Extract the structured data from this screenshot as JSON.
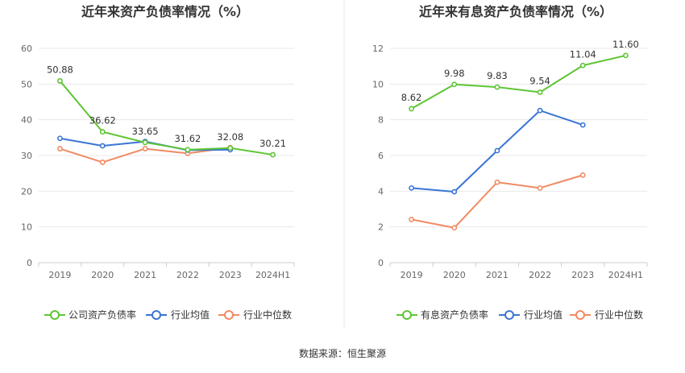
{
  "footer": {
    "source": "数据来源：恒生聚源"
  },
  "chart_data": [
    {
      "type": "line",
      "title": "近年来资产负债率情况（%）",
      "categories": [
        "2019",
        "2020",
        "2021",
        "2022",
        "2023",
        "2024H1"
      ],
      "ylim": [
        0,
        60
      ],
      "yticks": [
        0,
        10,
        20,
        30,
        40,
        50,
        60
      ],
      "grid": true,
      "legend_position": "bottom",
      "series": [
        {
          "name": "公司资产负债率",
          "color": "#5ec534",
          "values": [
            50.88,
            36.62,
            33.65,
            31.62,
            32.08,
            30.21
          ],
          "labels": [
            "50.88",
            "36.62",
            "33.65",
            "31.62",
            "32.08",
            "30.21"
          ]
        },
        {
          "name": "行业均值",
          "color": "#3a75d4",
          "values": [
            34.8,
            32.7,
            33.9,
            31.5,
            31.6,
            null
          ]
        },
        {
          "name": "行业中位数",
          "color": "#f28a63",
          "values": [
            31.9,
            28.1,
            31.9,
            30.6,
            32.2,
            null
          ]
        }
      ]
    },
    {
      "type": "line",
      "title": "近年来有息资产负债率情况（%）",
      "categories": [
        "2019",
        "2020",
        "2021",
        "2022",
        "2023",
        "2024H1"
      ],
      "ylim": [
        0,
        12
      ],
      "yticks": [
        0,
        2,
        4,
        6,
        8,
        10,
        12
      ],
      "grid": true,
      "legend_position": "bottom",
      "series": [
        {
          "name": "有息资产负债率",
          "color": "#5ec534",
          "values": [
            8.62,
            9.98,
            9.83,
            9.54,
            11.04,
            11.6
          ],
          "labels": [
            "8.62",
            "9.98",
            "9.83",
            "9.54",
            "11.04",
            "11.60"
          ]
        },
        {
          "name": "行业均值",
          "color": "#3a75d4",
          "values": [
            4.18,
            3.97,
            6.27,
            8.52,
            7.71,
            null
          ]
        },
        {
          "name": "行业中位数",
          "color": "#f28a63",
          "values": [
            2.42,
            1.95,
            4.5,
            4.18,
            4.9,
            null
          ]
        }
      ]
    }
  ]
}
